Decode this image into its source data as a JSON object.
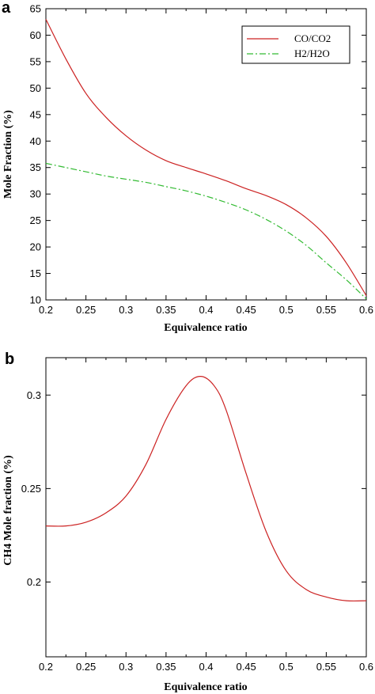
{
  "chart_data": [
    {
      "type": "line",
      "panel_label": "a",
      "xlabel": "Equivalence ratio",
      "ylabel": "Mole Fraction (%)",
      "xlim": [
        0.2,
        0.6
      ],
      "ylim": [
        10,
        65
      ],
      "xticks": [
        0.2,
        0.25,
        0.3,
        0.35,
        0.4,
        0.45,
        0.5,
        0.55,
        0.6
      ],
      "xtick_labels": [
        "0.2",
        "0.25",
        "0.3",
        "0.35",
        "0.4",
        "0.45",
        "0.5",
        "0.55",
        "0.6"
      ],
      "yticks": [
        10,
        15,
        20,
        25,
        30,
        35,
        40,
        45,
        50,
        55,
        60,
        65
      ],
      "ytick_labels": [
        "10",
        "15",
        "20",
        "25",
        "30",
        "35",
        "40",
        "45",
        "50",
        "55",
        "60",
        "65"
      ],
      "grid": false,
      "legend_position": "top-right",
      "series": [
        {
          "name": "CO/CO2",
          "color": "#cc2222",
          "dash": "solid",
          "x": [
            0.2,
            0.225,
            0.25,
            0.275,
            0.3,
            0.325,
            0.35,
            0.375,
            0.4,
            0.425,
            0.45,
            0.475,
            0.5,
            0.525,
            0.55,
            0.575,
            0.6
          ],
          "y": [
            63,
            55.5,
            49,
            44.5,
            41,
            38.3,
            36.3,
            35,
            33.8,
            32.5,
            31,
            29.7,
            28,
            25.5,
            22,
            17,
            10.8
          ]
        },
        {
          "name": "H2/H2O",
          "color": "#33bb33",
          "dash": "dashdot",
          "x": [
            0.2,
            0.225,
            0.25,
            0.275,
            0.3,
            0.325,
            0.35,
            0.375,
            0.4,
            0.425,
            0.45,
            0.475,
            0.5,
            0.525,
            0.55,
            0.575,
            0.6
          ],
          "y": [
            35.8,
            35,
            34.2,
            33.4,
            32.8,
            32.2,
            31.4,
            30.6,
            29.6,
            28.4,
            27,
            25.2,
            23,
            20.3,
            17,
            13.8,
            10.2
          ]
        }
      ]
    },
    {
      "type": "line",
      "panel_label": "b",
      "xlabel": "Equivalence ratio",
      "ylabel": "CH4 Mole fraction (%)",
      "xlim": [
        0.2,
        0.6
      ],
      "ylim": [
        0.16,
        0.32
      ],
      "xticks": [
        0.2,
        0.25,
        0.3,
        0.35,
        0.4,
        0.45,
        0.5,
        0.55,
        0.6
      ],
      "xtick_labels": [
        "0.2",
        "0.25",
        "0.3",
        "0.35",
        "0.4",
        "0.45",
        "0.5",
        "0.55",
        "0.6"
      ],
      "yticks": [
        0.2,
        0.25,
        0.3
      ],
      "ytick_labels": [
        "0.2",
        "0.25",
        "0.3"
      ],
      "grid": false,
      "series": [
        {
          "color": "#cc2222",
          "dash": "solid",
          "x": [
            0.2,
            0.225,
            0.25,
            0.275,
            0.3,
            0.325,
            0.35,
            0.375,
            0.393,
            0.41,
            0.425,
            0.45,
            0.475,
            0.5,
            0.525,
            0.55,
            0.575,
            0.6
          ],
          "y": [
            0.23,
            0.23,
            0.232,
            0.237,
            0.246,
            0.263,
            0.287,
            0.305,
            0.31,
            0.305,
            0.292,
            0.258,
            0.227,
            0.206,
            0.196,
            0.192,
            0.19,
            0.19
          ]
        }
      ]
    }
  ]
}
